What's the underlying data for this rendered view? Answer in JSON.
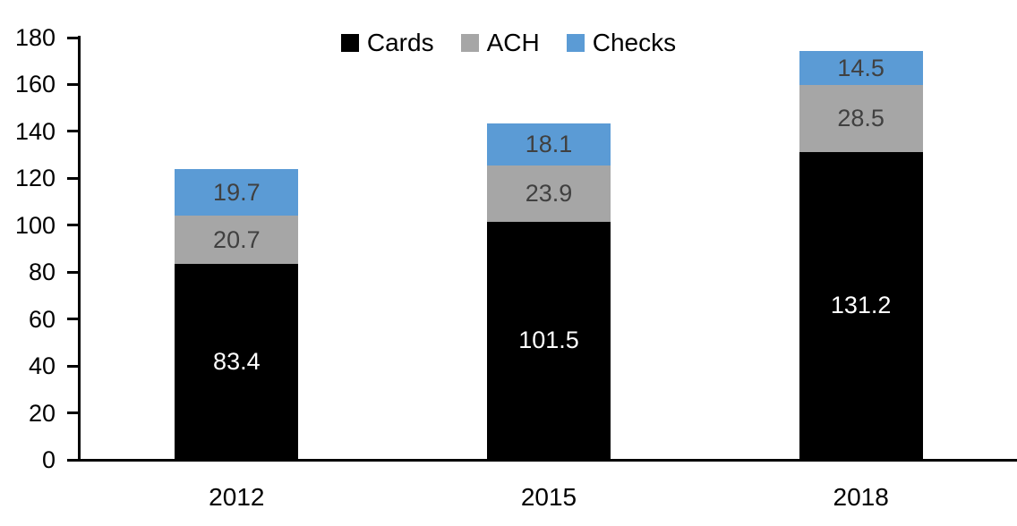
{
  "chart_data": {
    "type": "bar",
    "stacked": true,
    "title": "",
    "xlabel": "",
    "ylabel": "",
    "categories": [
      "2012",
      "2015",
      "2018"
    ],
    "series": [
      {
        "name": "Cards",
        "color": "#000000",
        "label_color": "#ffffff",
        "values": [
          83.4,
          101.5,
          131.2
        ]
      },
      {
        "name": "ACH",
        "color": "#a6a6a6",
        "label_color": "#404040",
        "values": [
          20.7,
          23.9,
          28.5
        ]
      },
      {
        "name": "Checks",
        "color": "#5b9bd5",
        "label_color": "#404040",
        "values": [
          19.7,
          18.1,
          14.5
        ]
      }
    ],
    "totals": [
      123.8,
      143.5,
      174.2
    ],
    "ylim": [
      0,
      180
    ],
    "y_ticks": [
      0,
      20,
      40,
      60,
      80,
      100,
      120,
      140,
      160,
      180
    ],
    "grid": false,
    "legend_position": "top-center",
    "axis_color": "#000000",
    "tick_label_color": "#000000",
    "background": "#ffffff"
  }
}
